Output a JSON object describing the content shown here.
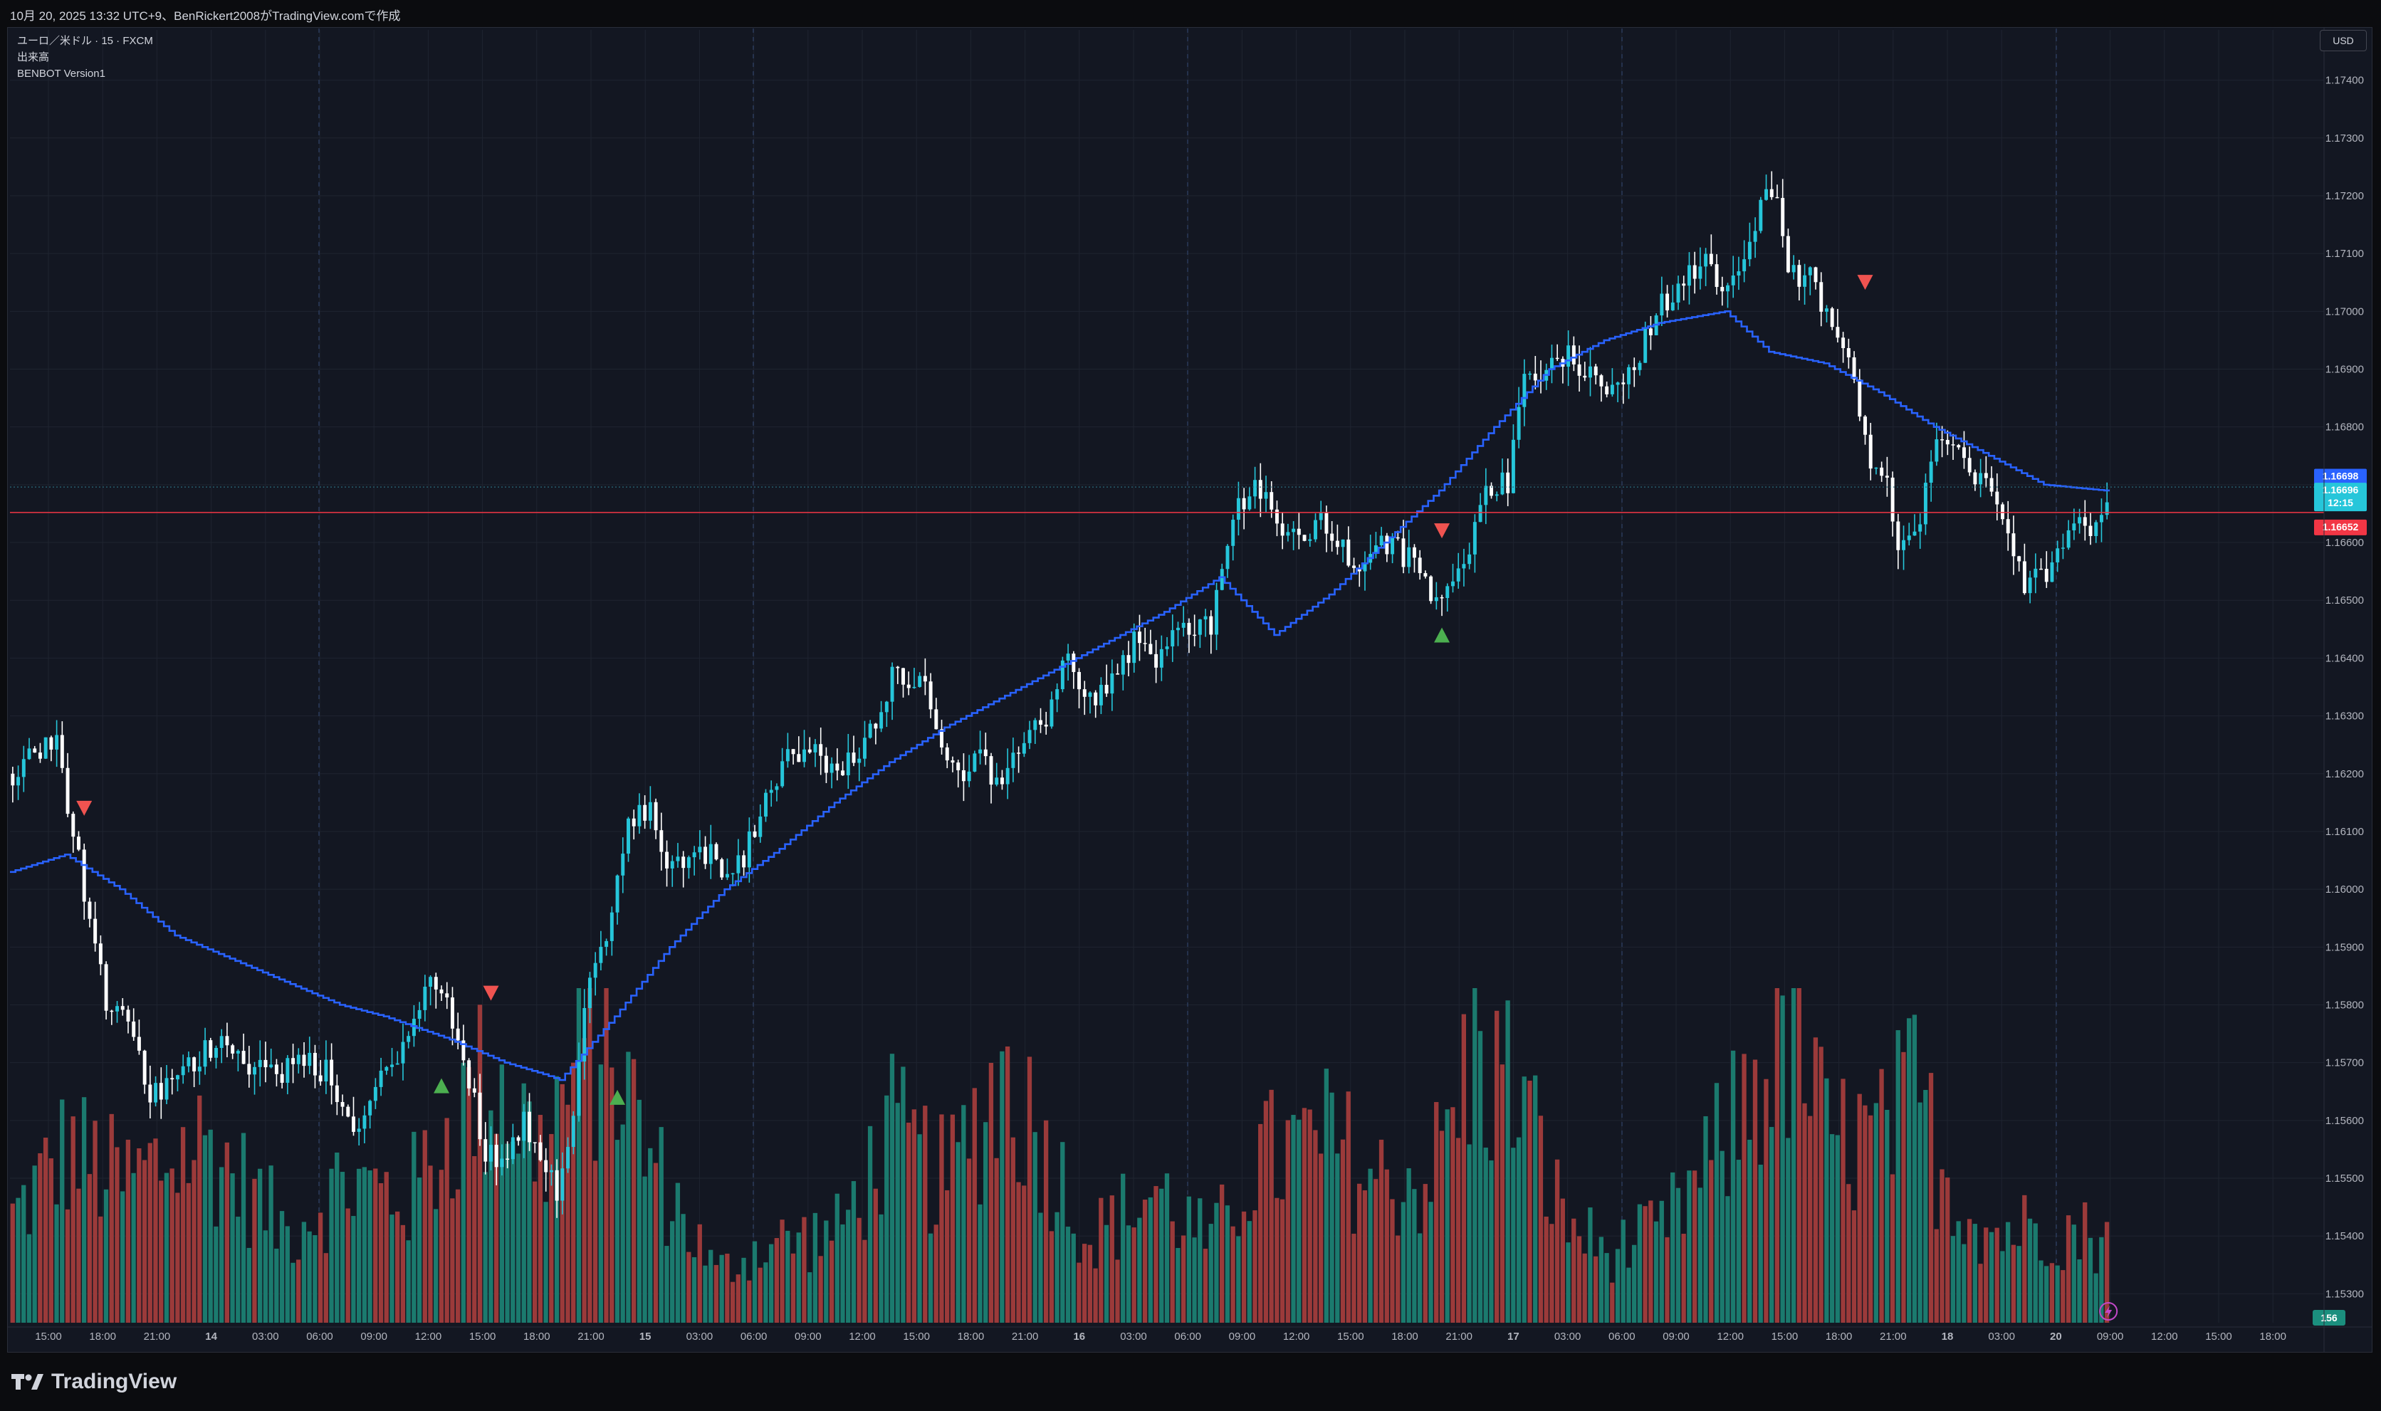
{
  "top_caption": "10月 20, 2025 13:32 UTC+9、BenRickert2008がTradingView.comで作成",
  "legend": {
    "symbol_line": "ユーロ／米ドル · 15 · FXCM",
    "volume_label": "出来高",
    "indicator_label": "BENBOT Version1"
  },
  "currency_button": "USD",
  "brand_name": "TradingView",
  "colors": {
    "background": "#131722",
    "grid": "#1f2430",
    "bull_candle": "#26c6da",
    "bear_candle": "#ffffff",
    "bull_volume": "#1b7a6e",
    "bear_volume": "#9b3a3a",
    "indicator_line": "#2962ff",
    "buy_signal": "#4caf50",
    "sell_signal": "#ef5350",
    "last_price_badge": "#26c6da",
    "line_value_badge": "#2962ff",
    "ref_line_badge": "#f23645"
  },
  "chart_data": {
    "type": "candlestick",
    "symbol": "ユーロ／米ドル",
    "interval": "15",
    "exchange": "FXCM",
    "y_range": [
      1.1525,
      1.1745
    ],
    "price_axis_ticks": [
      "1.17400",
      "1.17300",
      "1.17200",
      "1.17100",
      "1.17000",
      "1.16900",
      "1.16800",
      "1.16700",
      "1.16600",
      "1.16500",
      "1.16400",
      "1.16300",
      "1.16200",
      "1.16100",
      "1.16000",
      "1.15900",
      "1.15800",
      "1.15700",
      "1.15600",
      "1.15500",
      "1.15400",
      "1.15300"
    ],
    "time_axis_ticks": [
      "15:00",
      "18:00",
      "21:00",
      "14",
      "03:00",
      "06:00",
      "09:00",
      "12:00",
      "15:00",
      "18:00",
      "21:00",
      "15",
      "03:00",
      "06:00",
      "09:00",
      "12:00",
      "15:00",
      "18:00",
      "21:00",
      "16",
      "03:00",
      "06:00",
      "09:00",
      "12:00",
      "15:00",
      "18:00",
      "21:00",
      "17",
      "03:00",
      "06:00",
      "09:00",
      "12:00",
      "15:00",
      "18:00",
      "21:00",
      "18",
      "03:00",
      "20",
      "09:00",
      "12:00",
      "15:00",
      "18:00"
    ],
    "bar_count": 382,
    "price_path_keypoints": [
      [
        0,
        1.162
      ],
      [
        8,
        1.1627
      ],
      [
        10,
        1.1615
      ],
      [
        13,
        1.16
      ],
      [
        17,
        1.158
      ],
      [
        22,
        1.1575
      ],
      [
        25,
        1.1564
      ],
      [
        30,
        1.1567
      ],
      [
        33,
        1.157
      ],
      [
        38,
        1.1575
      ],
      [
        43,
        1.157
      ],
      [
        48,
        1.1568
      ],
      [
        53,
        1.157
      ],
      [
        58,
        1.1568
      ],
      [
        60,
        1.1562
      ],
      [
        63,
        1.1558
      ],
      [
        66,
        1.1565
      ],
      [
        70,
        1.1572
      ],
      [
        73,
        1.1576
      ],
      [
        76,
        1.1585
      ],
      [
        79,
        1.158
      ],
      [
        82,
        1.157
      ],
      [
        84,
        1.1563
      ],
      [
        86,
        1.1555
      ],
      [
        89,
        1.1553
      ],
      [
        93,
        1.156
      ],
      [
        96,
        1.1555
      ],
      [
        99,
        1.1548
      ],
      [
        102,
        1.1562
      ],
      [
        105,
        1.1585
      ],
      [
        109,
        1.1595
      ],
      [
        112,
        1.1612
      ],
      [
        116,
        1.1613
      ],
      [
        120,
        1.1603
      ],
      [
        124,
        1.1608
      ],
      [
        128,
        1.1605
      ],
      [
        131,
        1.1602
      ],
      [
        135,
        1.161
      ],
      [
        140,
        1.1622
      ],
      [
        145,
        1.1624
      ],
      [
        150,
        1.162
      ],
      [
        155,
        1.1625
      ],
      [
        160,
        1.1637
      ],
      [
        165,
        1.1637
      ],
      [
        168,
        1.1628
      ],
      [
        172,
        1.162
      ],
      [
        176,
        1.1623
      ],
      [
        180,
        1.1616
      ],
      [
        184,
        1.1627
      ],
      [
        188,
        1.163
      ],
      [
        192,
        1.164
      ],
      [
        196,
        1.1633
      ],
      [
        200,
        1.1636
      ],
      [
        204,
        1.1643
      ],
      [
        208,
        1.164
      ],
      [
        213,
        1.1645
      ],
      [
        218,
        1.1646
      ],
      [
        222,
        1.1665
      ],
      [
        226,
        1.167
      ],
      [
        230,
        1.1663
      ],
      [
        234,
        1.166
      ],
      [
        238,
        1.1664
      ],
      [
        241,
        1.166
      ],
      [
        244,
        1.1655
      ],
      [
        248,
        1.166
      ],
      [
        252,
        1.1659
      ],
      [
        256,
        1.1655
      ],
      [
        259,
        1.1649
      ],
      [
        262,
        1.1655
      ],
      [
        265,
        1.166
      ],
      [
        268,
        1.167
      ],
      [
        272,
        1.167
      ],
      [
        275,
        1.1688
      ],
      [
        279,
        1.169
      ],
      [
        283,
        1.1692
      ],
      [
        287,
        1.169
      ],
      [
        291,
        1.1686
      ],
      [
        295,
        1.169
      ],
      [
        299,
        1.17
      ],
      [
        304,
        1.1706
      ],
      [
        308,
        1.1708
      ],
      [
        311,
        1.1704
      ],
      [
        315,
        1.171
      ],
      [
        319,
        1.1722
      ],
      [
        321,
        1.1718
      ],
      [
        323,
        1.1706
      ],
      [
        327,
        1.1706
      ],
      [
        331,
        1.1698
      ],
      [
        335,
        1.1688
      ],
      [
        338,
        1.1675
      ],
      [
        341,
        1.167
      ],
      [
        343,
        1.166
      ],
      [
        346,
        1.166
      ],
      [
        349,
        1.1675
      ],
      [
        352,
        1.1678
      ],
      [
        356,
        1.1672
      ],
      [
        360,
        1.1669
      ],
      [
        363,
        1.1662
      ],
      [
        366,
        1.1652
      ],
      [
        369,
        1.1654
      ],
      [
        372,
        1.1658
      ],
      [
        375,
        1.1665
      ],
      [
        378,
        1.1663
      ],
      [
        381,
        1.1668
      ]
    ],
    "indicator_line_keypoints": [
      [
        0,
        1.1603
      ],
      [
        10,
        1.1606
      ],
      [
        20,
        1.16
      ],
      [
        30,
        1.1592
      ],
      [
        40,
        1.1588
      ],
      [
        50,
        1.1584
      ],
      [
        60,
        1.158
      ],
      [
        68,
        1.1578
      ],
      [
        74,
        1.1576
      ],
      [
        80,
        1.1574
      ],
      [
        90,
        1.157
      ],
      [
        97,
        1.1568
      ],
      [
        100,
        1.1567
      ],
      [
        110,
        1.1578
      ],
      [
        120,
        1.159
      ],
      [
        130,
        1.16
      ],
      [
        140,
        1.1607
      ],
      [
        150,
        1.1615
      ],
      [
        160,
        1.1622
      ],
      [
        170,
        1.1628
      ],
      [
        180,
        1.1633
      ],
      [
        190,
        1.1638
      ],
      [
        200,
        1.1643
      ],
      [
        210,
        1.1648
      ],
      [
        220,
        1.1654
      ],
      [
        230,
        1.1644
      ],
      [
        240,
        1.1651
      ],
      [
        250,
        1.166
      ],
      [
        260,
        1.1669
      ],
      [
        270,
        1.168
      ],
      [
        280,
        1.169
      ],
      [
        290,
        1.1695
      ],
      [
        300,
        1.1698
      ],
      [
        312,
        1.17
      ],
      [
        320,
        1.1693
      ],
      [
        330,
        1.1691
      ],
      [
        340,
        1.1686
      ],
      [
        350,
        1.168
      ],
      [
        360,
        1.1675
      ],
      [
        370,
        1.167
      ],
      [
        381,
        1.1669
      ]
    ],
    "volume_keypoints": [
      [
        0,
        1500
      ],
      [
        10,
        2500
      ],
      [
        20,
        2000
      ],
      [
        35,
        2600
      ],
      [
        50,
        1300
      ],
      [
        60,
        2000
      ],
      [
        72,
        1800
      ],
      [
        80,
        2800
      ],
      [
        88,
        3600
      ],
      [
        96,
        2400
      ],
      [
        100,
        3200
      ],
      [
        108,
        4200
      ],
      [
        116,
        2300
      ],
      [
        120,
        1800
      ],
      [
        128,
        700
      ],
      [
        136,
        1100
      ],
      [
        150,
        1300
      ],
      [
        160,
        2700
      ],
      [
        170,
        2000
      ],
      [
        180,
        3600
      ],
      [
        188,
        2500
      ],
      [
        196,
        1200
      ],
      [
        208,
        1900
      ],
      [
        218,
        1100
      ],
      [
        226,
        2300
      ],
      [
        240,
        2600
      ],
      [
        248,
        2000
      ],
      [
        258,
        2100
      ],
      [
        266,
        3800
      ],
      [
        274,
        3300
      ],
      [
        282,
        1500
      ],
      [
        290,
        1000
      ],
      [
        300,
        1300
      ],
      [
        310,
        2400
      ],
      [
        318,
        3600
      ],
      [
        324,
        4200
      ],
      [
        330,
        2600
      ],
      [
        340,
        2600
      ],
      [
        346,
        3300
      ],
      [
        352,
        2000
      ],
      [
        360,
        1300
      ],
      [
        370,
        1400
      ],
      [
        381,
        1200
      ]
    ],
    "buy_signals": [
      {
        "bar": 78,
        "price": 1.157
      },
      {
        "bar": 110,
        "price": 1.1568
      },
      {
        "bar": 260,
        "price": 1.1648
      }
    ],
    "sell_signals": [
      {
        "bar": 13,
        "price": 1.1611
      },
      {
        "bar": 87,
        "price": 1.1579
      },
      {
        "bar": 260,
        "price": 1.1659
      },
      {
        "bar": 337,
        "price": 1.1702
      }
    ],
    "horizontal_line": {
      "price": 1.16652,
      "label": "1.16652"
    },
    "last_price_badge": {
      "price": "1.16696",
      "countdown": "12:15"
    },
    "line_value_badge": {
      "price": "1.16698"
    },
    "volume_badge": "156"
  }
}
